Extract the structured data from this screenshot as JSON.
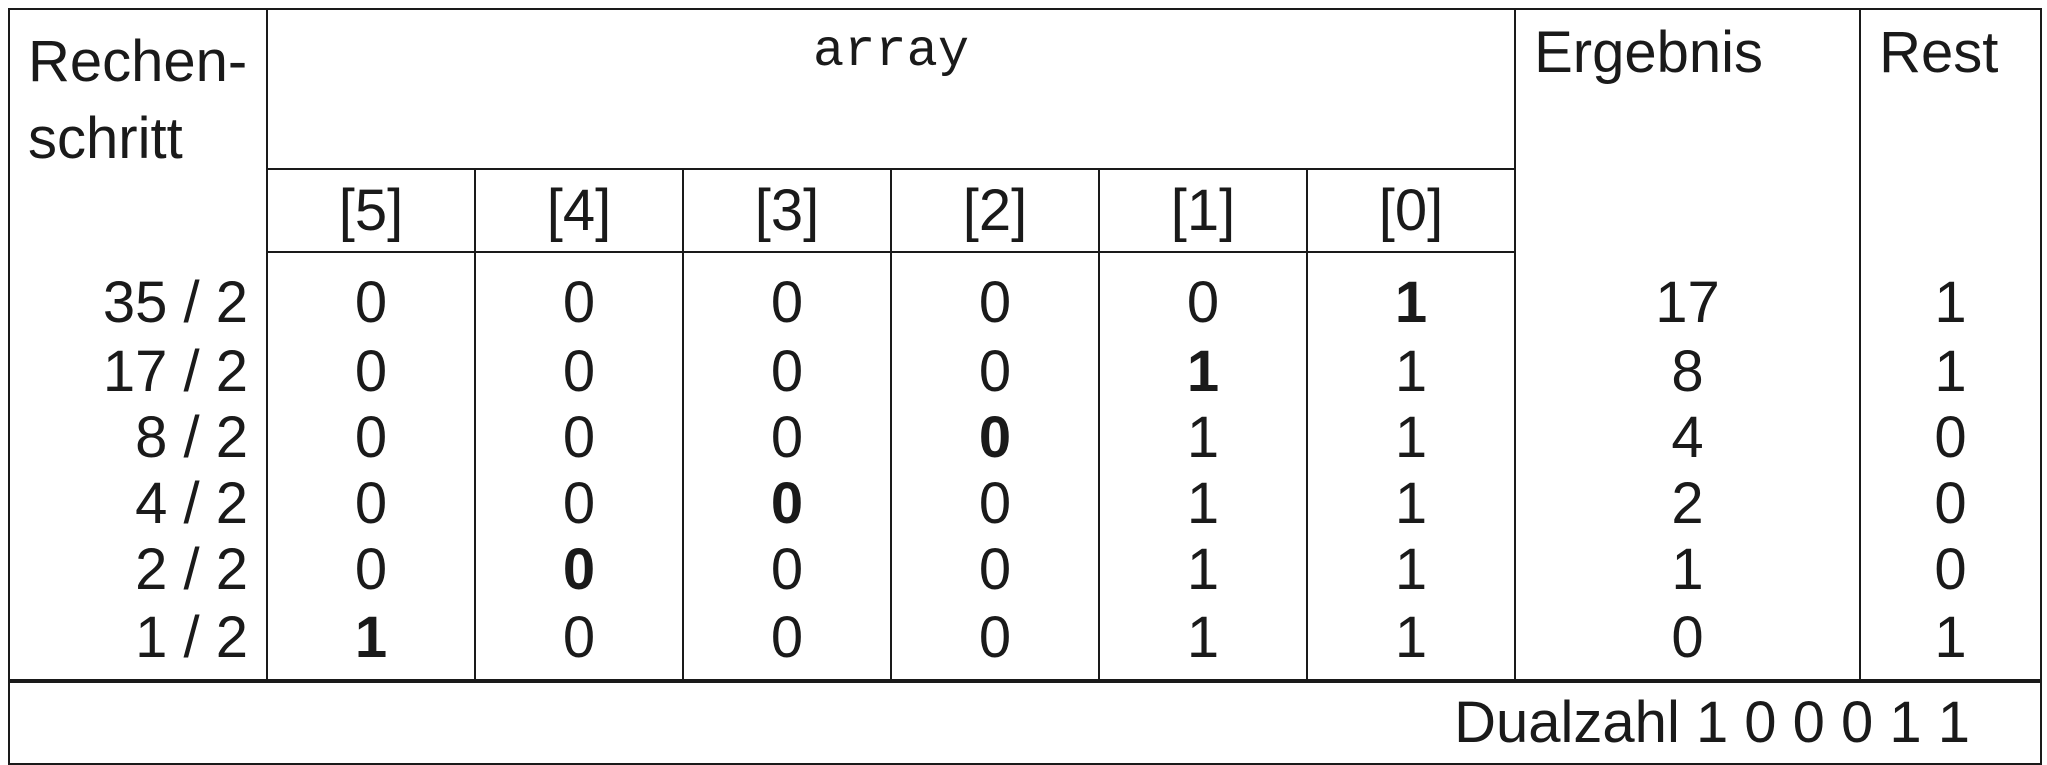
{
  "headers": {
    "step_line1": "Rechen-",
    "step_line2": "schritt",
    "array": "array",
    "result": "Ergebnis",
    "rest": "Rest",
    "indices": [
      "[5]",
      "[4]",
      "[3]",
      "[2]",
      "[1]",
      "[0]"
    ]
  },
  "rows": [
    {
      "step": "35 / 2",
      "cells": [
        "0",
        "0",
        "0",
        "0",
        "0",
        "1"
      ],
      "bold_index": 5,
      "result": "17",
      "rest": "1"
    },
    {
      "step": "17 / 2",
      "cells": [
        "0",
        "0",
        "0",
        "0",
        "1",
        "1"
      ],
      "bold_index": 4,
      "result": "8",
      "rest": "1"
    },
    {
      "step": "8 / 2",
      "cells": [
        "0",
        "0",
        "0",
        "0",
        "1",
        "1"
      ],
      "bold_index": 3,
      "result": "4",
      "rest": "0"
    },
    {
      "step": "4 / 2",
      "cells": [
        "0",
        "0",
        "0",
        "0",
        "1",
        "1"
      ],
      "bold_index": 2,
      "result": "2",
      "rest": "0"
    },
    {
      "step": "2 / 2",
      "cells": [
        "0",
        "0",
        "0",
        "0",
        "1",
        "1"
      ],
      "bold_index": 1,
      "result": "1",
      "rest": "0"
    },
    {
      "step": "1 / 2",
      "cells": [
        "1",
        "0",
        "0",
        "0",
        "1",
        "1"
      ],
      "bold_index": 0,
      "result": "0",
      "rest": "1"
    }
  ],
  "footer": {
    "text": "Dualzahl 1 0 0 0 1 1"
  }
}
